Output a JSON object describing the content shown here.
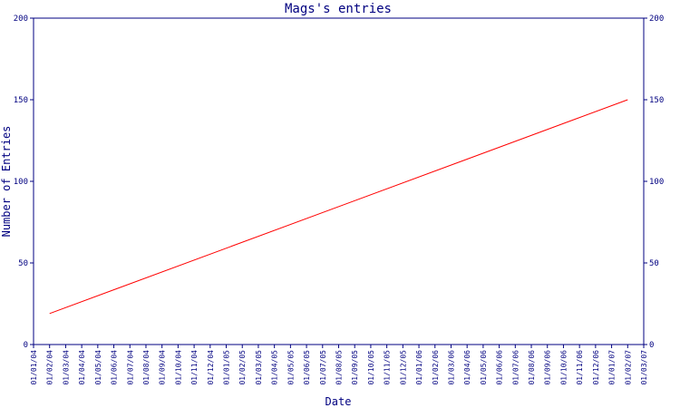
{
  "chart_data": {
    "type": "line",
    "title": "Mags's entries",
    "xlabel": "Date",
    "ylabel": "Number of Entries",
    "ylim": [
      0,
      200
    ],
    "yticks": [
      0,
      50,
      100,
      150,
      200
    ],
    "xticks": [
      "01/01/04",
      "01/02/04",
      "01/03/04",
      "01/04/04",
      "01/05/04",
      "01/06/04",
      "01/07/04",
      "01/08/04",
      "01/09/04",
      "01/10/04",
      "01/11/04",
      "01/12/04",
      "01/01/05",
      "01/02/05",
      "01/03/05",
      "01/04/05",
      "01/05/05",
      "01/06/05",
      "01/07/05",
      "01/08/05",
      "01/09/05",
      "01/10/05",
      "01/11/05",
      "01/12/05",
      "01/01/06",
      "01/02/06",
      "01/03/06",
      "01/04/06",
      "01/05/06",
      "01/06/06",
      "01/07/06",
      "01/08/06",
      "01/09/06",
      "01/10/06",
      "01/11/06",
      "01/12/06",
      "01/01/07",
      "01/02/07",
      "01/03/07"
    ],
    "series": [
      {
        "color": "#ff0000",
        "x": [
          "01/02/04",
          "01/02/07"
        ],
        "y": [
          19,
          150
        ]
      }
    ],
    "axis_color": "#000080",
    "grid": false
  }
}
